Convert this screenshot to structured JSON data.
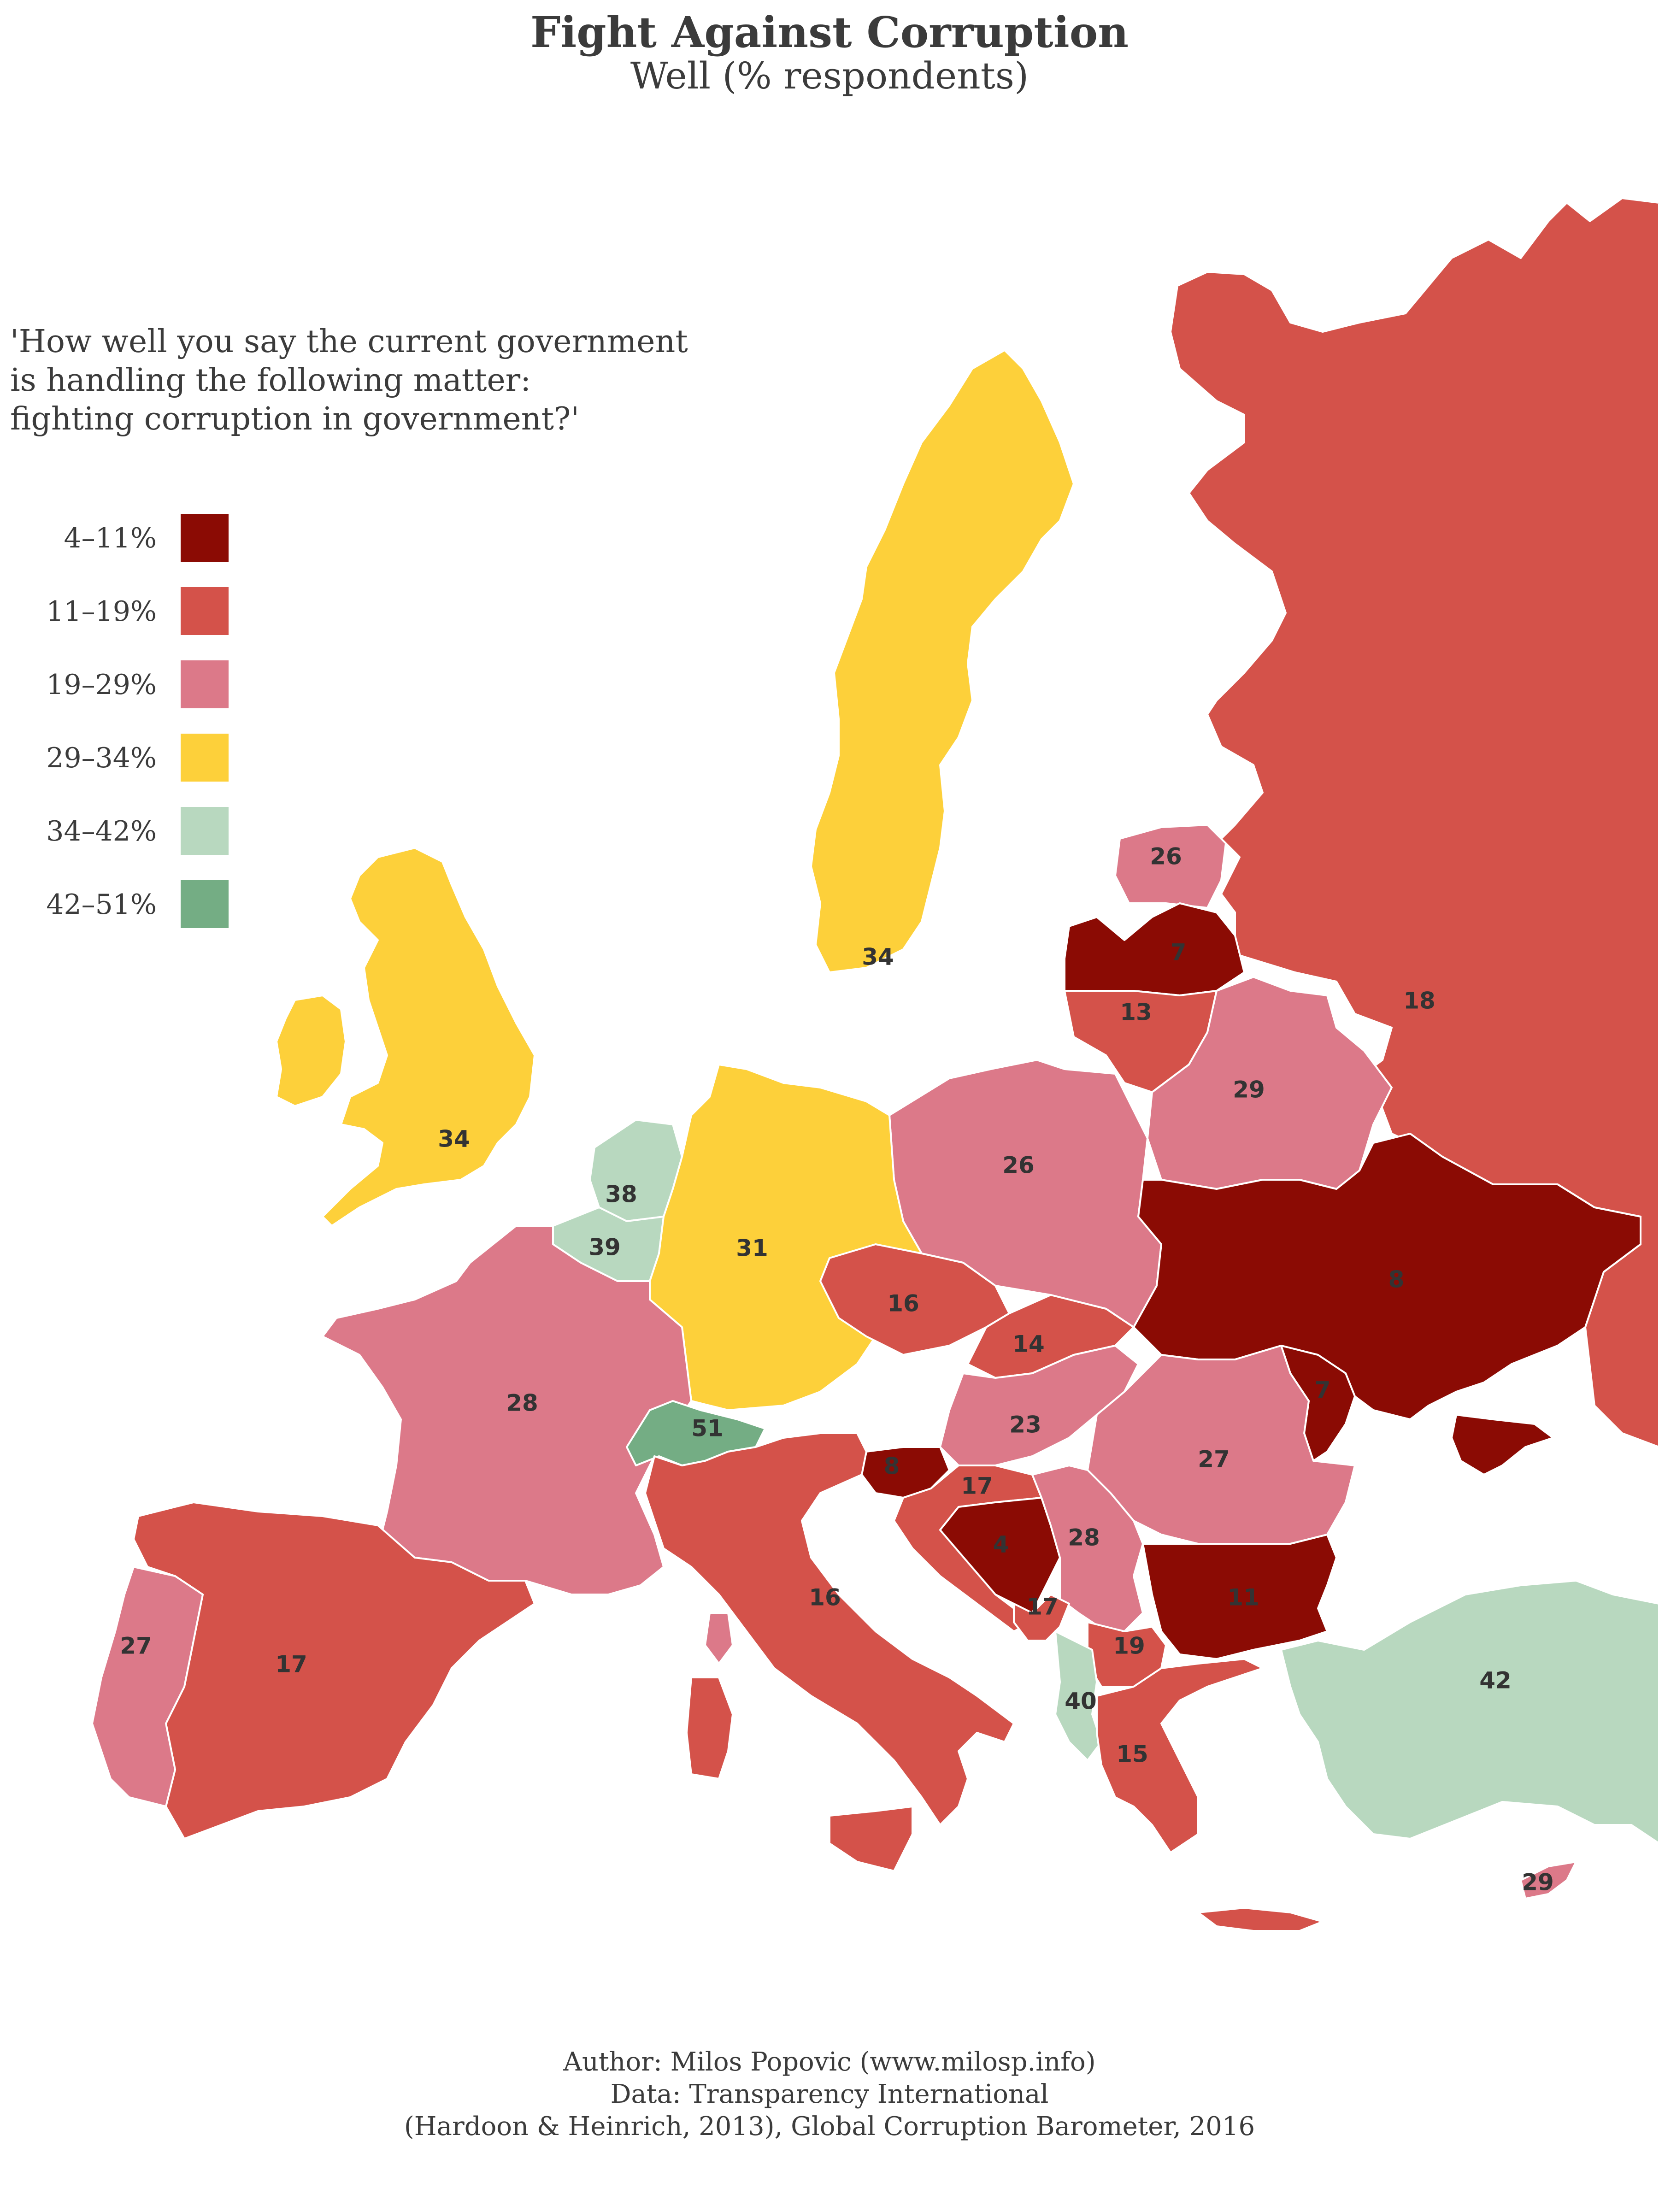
{
  "title": "Fight Against Corruption",
  "subtitle": "Well (% respondents)",
  "question": [
    "'How well you say the current government",
    "is handling the following matter:",
    "fighting corruption in government?'"
  ],
  "legend": [
    {
      "label": "4–11%",
      "color": "#8b0b04"
    },
    {
      "label": "11–19%",
      "color": "#d4524a"
    },
    {
      "label": "19–29%",
      "color": "#dc7989"
    },
    {
      "label": "29–34%",
      "color": "#fdd03a"
    },
    {
      "label": "34–42%",
      "color": "#b8d8bf"
    },
    {
      "label": "42–51%",
      "color": "#74ad84"
    }
  ],
  "countries": [
    {
      "name": "Russia",
      "value": 18,
      "color": "#d4524a"
    },
    {
      "name": "Sweden",
      "value": 34,
      "color": "#fdd03a"
    },
    {
      "name": "United Kingdom",
      "value": 34,
      "color": "#fdd03a"
    },
    {
      "name": "Ireland",
      "value": null,
      "color": "#fdd03a"
    },
    {
      "name": "Estonia",
      "value": 26,
      "color": "#dc7989"
    },
    {
      "name": "Latvia",
      "value": 7,
      "color": "#8b0b04"
    },
    {
      "name": "Lithuania",
      "value": 13,
      "color": "#d4524a"
    },
    {
      "name": "Belarus",
      "value": 29,
      "color": "#dc7989"
    },
    {
      "name": "Poland",
      "value": 26,
      "color": "#dc7989"
    },
    {
      "name": "Netherlands",
      "value": 38,
      "color": "#b8d8bf"
    },
    {
      "name": "Belgium",
      "value": 39,
      "color": "#b8d8bf"
    },
    {
      "name": "Germany",
      "value": 31,
      "color": "#fdd03a"
    },
    {
      "name": "Czech Republic",
      "value": 16,
      "color": "#d4524a"
    },
    {
      "name": "Slovakia",
      "value": 14,
      "color": "#d4524a"
    },
    {
      "name": "Ukraine",
      "value": 8,
      "color": "#8b0b04"
    },
    {
      "name": "Moldova",
      "value": 7,
      "color": "#8b0b04"
    },
    {
      "name": "France",
      "value": 28,
      "color": "#dc7989"
    },
    {
      "name": "Switzerland",
      "value": 51,
      "color": "#74ad84"
    },
    {
      "name": "Hungary",
      "value": 23,
      "color": "#dc7989"
    },
    {
      "name": "Romania",
      "value": 27,
      "color": "#dc7989"
    },
    {
      "name": "Slovenia",
      "value": 8,
      "color": "#8b0b04"
    },
    {
      "name": "Croatia",
      "value": 17,
      "color": "#d4524a"
    },
    {
      "name": "Bosnia and Herzegovina",
      "value": 4,
      "color": "#8b0b04"
    },
    {
      "name": "Serbia",
      "value": 28,
      "color": "#dc7989"
    },
    {
      "name": "Montenegro",
      "value": 17,
      "color": "#d4524a"
    },
    {
      "name": "Bulgaria",
      "value": 11,
      "color": "#8b0b04"
    },
    {
      "name": "North Macedonia",
      "value": 19,
      "color": "#d4524a"
    },
    {
      "name": "Albania",
      "value": 40,
      "color": "#b8d8bf"
    },
    {
      "name": "Greece",
      "value": 15,
      "color": "#d4524a"
    },
    {
      "name": "Turkey",
      "value": 42,
      "color": "#b8d8bf"
    },
    {
      "name": "Cyprus",
      "value": 29,
      "color": "#dc7989"
    },
    {
      "name": "Italy",
      "value": 16,
      "color": "#d4524a"
    },
    {
      "name": "Spain",
      "value": 17,
      "color": "#d4524a"
    },
    {
      "name": "Portugal",
      "value": 27,
      "color": "#dc7989"
    }
  ],
  "caption": [
    "Author: Milos Popovic (www.milosp.info)",
    "Data: Transparency International",
    "(Hardoon & Heinrich, 2013), Global Corruption Barometer, 2016"
  ]
}
